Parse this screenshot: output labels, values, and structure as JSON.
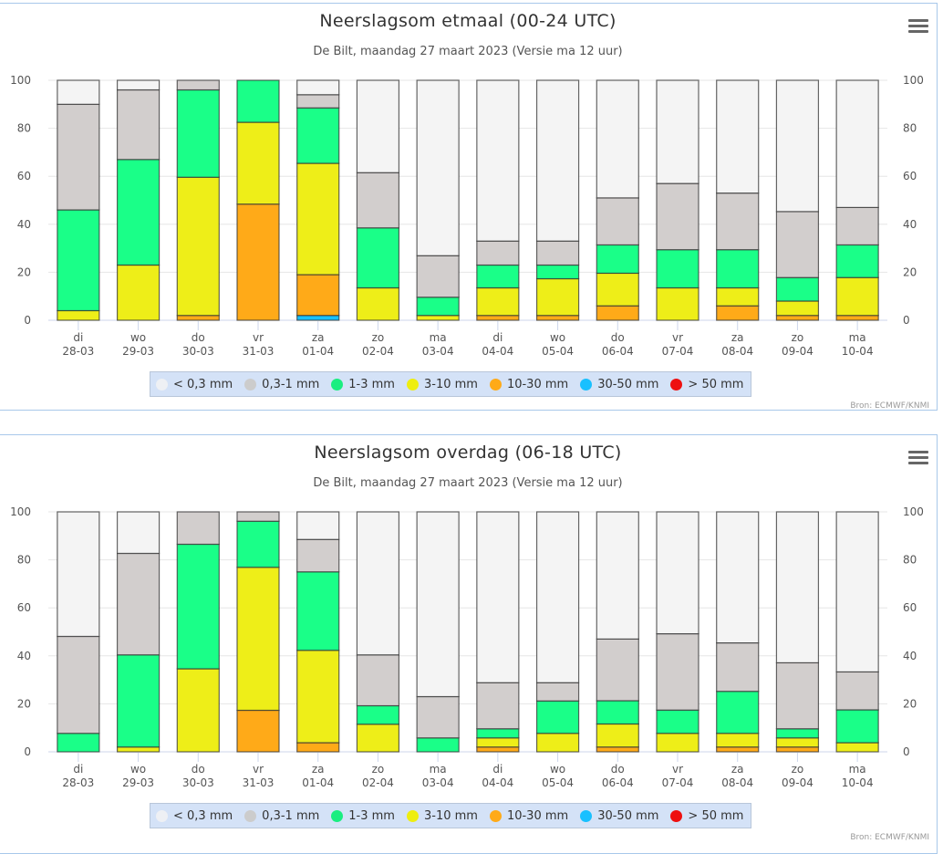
{
  "legend": [
    {
      "label": "< 0,3 mm",
      "color": "#f4f4f4",
      "dot": "#eef0f4"
    },
    {
      "label": "0,3-1 mm",
      "color": "#d2cecd",
      "dot": "#cccccc"
    },
    {
      "label": "1-3 mm",
      "color": "#1aff88",
      "dot": "#1aee80"
    },
    {
      "label": "3-10 mm",
      "color": "#eeee18",
      "dot": "#eeee10"
    },
    {
      "label": "10-30 mm",
      "color": "#ffaa18",
      "dot": "#ffaa18"
    },
    {
      "label": "30-50 mm",
      "color": "#18c0ff",
      "dot": "#18c0ff"
    },
    {
      "label": "> 50 mm",
      "color": "#ee1010",
      "dot": "#ee1010"
    }
  ],
  "credits": "Bron: ECMWF/KNMI",
  "menu_icon": "hamburger-menu-icon",
  "chart_data": [
    {
      "type": "bar",
      "stacked": true,
      "title": "Neerslagsom etmaal (00-24 UTC)",
      "subtitle": "De Bilt, maandag 27 maart 2023 (Versie ma 12 uur)",
      "xlabel": "",
      "ylabel": "",
      "ylim": [
        0,
        100
      ],
      "yticks": [
        0,
        20,
        40,
        60,
        80,
        100
      ],
      "grid": true,
      "legend_position": "bottom",
      "categories": [
        {
          "day": "di",
          "date": "28-03"
        },
        {
          "day": "wo",
          "date": "29-03"
        },
        {
          "day": "do",
          "date": "30-03"
        },
        {
          "day": "vr",
          "date": "31-03"
        },
        {
          "day": "za",
          "date": "01-04"
        },
        {
          "day": "zo",
          "date": "02-04"
        },
        {
          "day": "ma",
          "date": "03-04"
        },
        {
          "day": "di",
          "date": "04-04"
        },
        {
          "day": "wo",
          "date": "05-04"
        },
        {
          "day": "do",
          "date": "06-04"
        },
        {
          "day": "vr",
          "date": "07-04"
        },
        {
          "day": "za",
          "date": "08-04"
        },
        {
          "day": "zo",
          "date": "09-04"
        },
        {
          "day": "ma",
          "date": "10-04"
        }
      ],
      "series": [
        {
          "name": "> 50 mm",
          "values": [
            0,
            0,
            0,
            0,
            0,
            0,
            0,
            0,
            0,
            0,
            0,
            0,
            0,
            0
          ]
        },
        {
          "name": "30-50 mm",
          "values": [
            0,
            0,
            0,
            0,
            2,
            0,
            0,
            0,
            0,
            0,
            0,
            0,
            0,
            0
          ]
        },
        {
          "name": "10-30 mm",
          "values": [
            0,
            0,
            2,
            48.4,
            17,
            0,
            0,
            2,
            2,
            6,
            0,
            6,
            2,
            2
          ]
        },
        {
          "name": "3-10 mm",
          "values": [
            4,
            23,
            57.6,
            34.1,
            46.4,
            13.5,
            2,
            11.5,
            15.3,
            13.6,
            13.5,
            7.5,
            6,
            15.8
          ]
        },
        {
          "name": "1-3 mm",
          "values": [
            42,
            44,
            36.4,
            17.5,
            23.1,
            25,
            7.6,
            9.5,
            5.7,
            11.8,
            15.9,
            15.9,
            9.8,
            13.6
          ]
        },
        {
          "name": "0,3-1 mm",
          "values": [
            44,
            29,
            4,
            0,
            5.5,
            23,
            17.3,
            10,
            10,
            19.6,
            27.6,
            23.6,
            27.5,
            15.6
          ]
        },
        {
          "name": "< 0,3 mm",
          "values": [
            10,
            4,
            0,
            0,
            6,
            38.5,
            73.1,
            67,
            67,
            49,
            43,
            47,
            54.7,
            53
          ]
        }
      ]
    },
    {
      "type": "bar",
      "stacked": true,
      "title": "Neerslagsom overdag (06-18 UTC)",
      "subtitle": "De Bilt, maandag 27 maart 2023 (Versie ma 12 uur)",
      "xlabel": "",
      "ylabel": "",
      "ylim": [
        0,
        100
      ],
      "yticks": [
        0,
        20,
        40,
        60,
        80,
        100
      ],
      "grid": true,
      "legend_position": "bottom",
      "categories": [
        {
          "day": "di",
          "date": "28-03"
        },
        {
          "day": "wo",
          "date": "29-03"
        },
        {
          "day": "do",
          "date": "30-03"
        },
        {
          "day": "vr",
          "date": "31-03"
        },
        {
          "day": "za",
          "date": "01-04"
        },
        {
          "day": "zo",
          "date": "02-04"
        },
        {
          "day": "ma",
          "date": "03-04"
        },
        {
          "day": "di",
          "date": "04-04"
        },
        {
          "day": "wo",
          "date": "05-04"
        },
        {
          "day": "do",
          "date": "06-04"
        },
        {
          "day": "vr",
          "date": "07-04"
        },
        {
          "day": "za",
          "date": "08-04"
        },
        {
          "day": "zo",
          "date": "09-04"
        },
        {
          "day": "ma",
          "date": "10-04"
        }
      ],
      "series": [
        {
          "name": "> 50 mm",
          "values": [
            0,
            0,
            0,
            0,
            0,
            0,
            0,
            0,
            0,
            0,
            0,
            0,
            0,
            0
          ]
        },
        {
          "name": "30-50 mm",
          "values": [
            0,
            0,
            0,
            0,
            0,
            0,
            0,
            0,
            0,
            0,
            0,
            0,
            0,
            0
          ]
        },
        {
          "name": "10-30 mm",
          "values": [
            0,
            0,
            0,
            17.3,
            3.8,
            0,
            0,
            2,
            0,
            2,
            0,
            2,
            2,
            0
          ]
        },
        {
          "name": "3-10 mm",
          "values": [
            0,
            2,
            34.6,
            59.6,
            38.5,
            11.5,
            0,
            3.8,
            7.7,
            9.6,
            7.7,
            5.7,
            3.8,
            3.8
          ]
        },
        {
          "name": "1-3 mm",
          "values": [
            7.7,
            38.4,
            51.9,
            19.2,
            32.7,
            7.7,
            5.8,
            3.8,
            13.5,
            9.7,
            9.7,
            17.5,
            3.8,
            13.7
          ]
        },
        {
          "name": "0,3-1 mm",
          "values": [
            40.4,
            42.3,
            13.5,
            3.9,
            13.5,
            21.2,
            17.2,
            19.2,
            7.6,
            25.7,
            31.8,
            20.2,
            27.5,
            15.8
          ]
        },
        {
          "name": "< 0,3 mm",
          "values": [
            51.9,
            17.3,
            0,
            0,
            11.5,
            59.6,
            77,
            71.2,
            71.2,
            53,
            50.8,
            54.6,
            62.9,
            66.7
          ]
        }
      ]
    }
  ]
}
